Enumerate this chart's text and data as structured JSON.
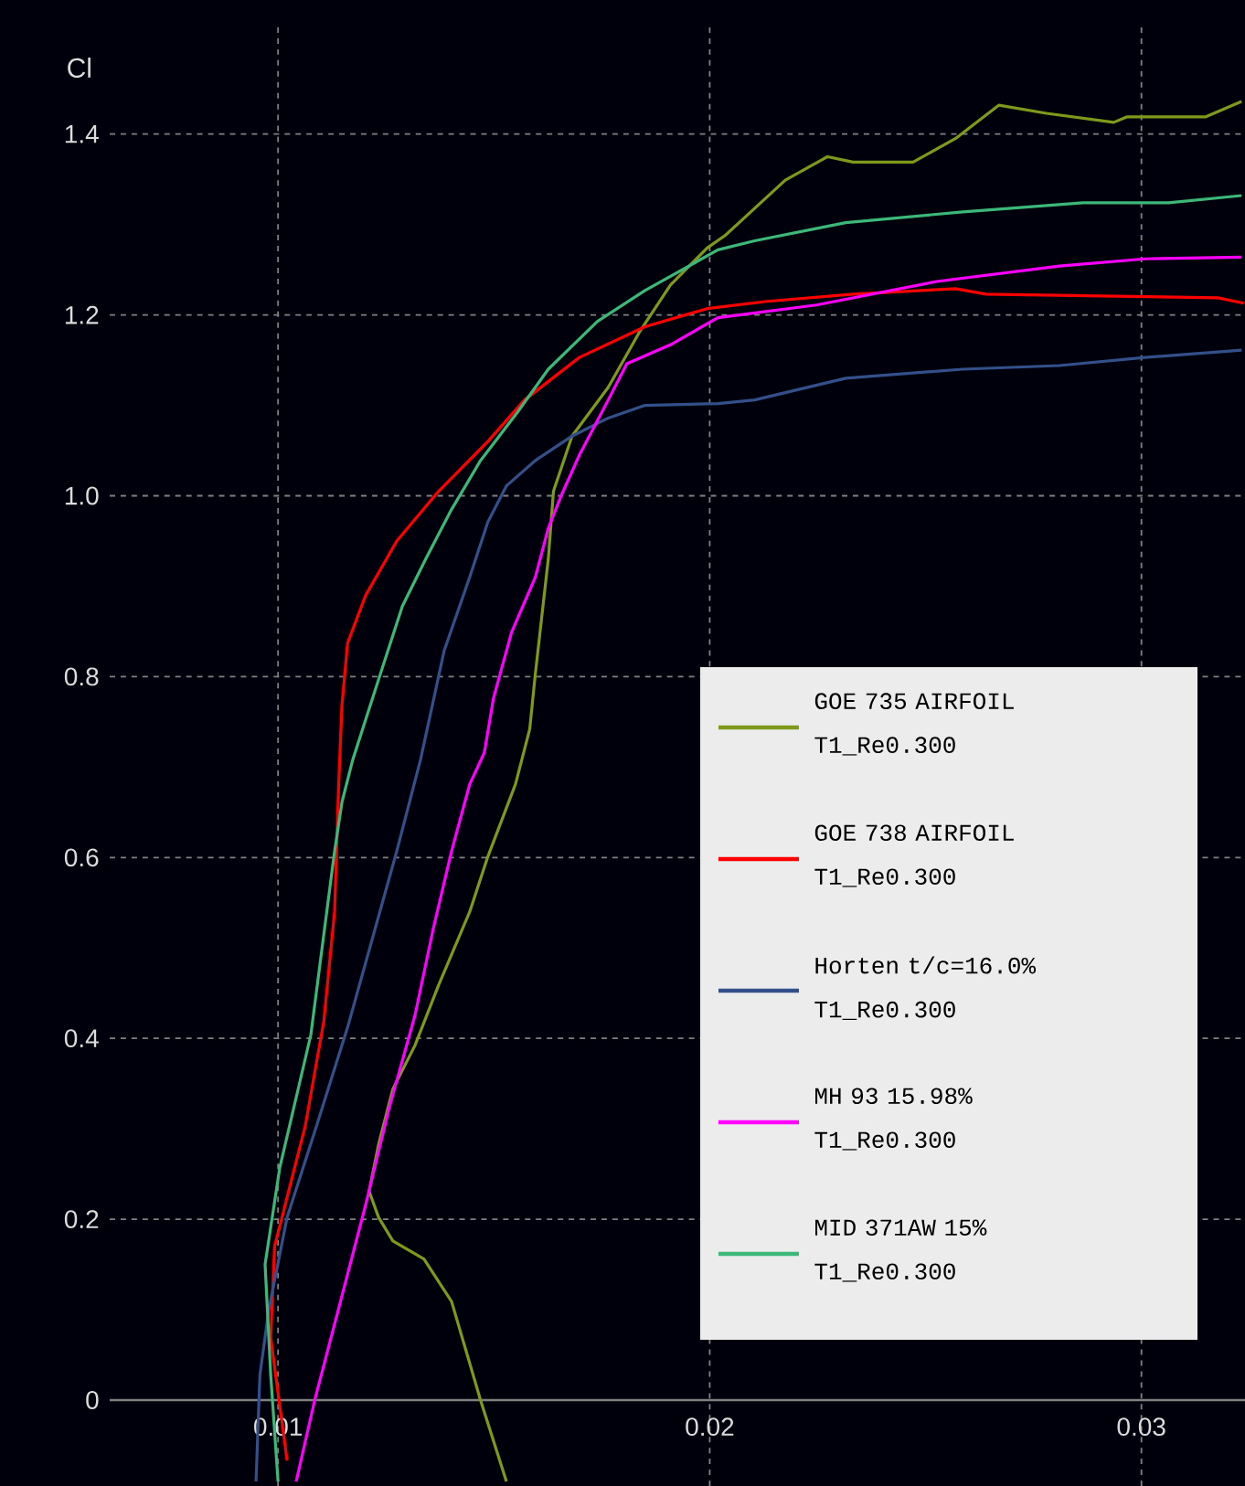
{
  "chart_data": {
    "type": "line",
    "ylabel": "Cl",
    "xlim": [
      0.0061,
      0.0324
    ],
    "ylim": [
      -0.095,
      1.52
    ],
    "xticks": [
      0.01,
      0.02,
      0.03
    ],
    "yticks": [
      0,
      0.2,
      0.4,
      0.6,
      0.8,
      {
        "value": 1,
        "label": "1.0"
      },
      1.2,
      1.4
    ],
    "grid": true,
    "legend": "bottom right",
    "series": [
      {
        "name": "GOE 735 AIRFOIL T1_Re0.300",
        "color": "#7f9a1a",
        "x": [
          0.01529,
          0.01469,
          0.01402,
          0.01338,
          0.01266,
          0.01233,
          0.01211,
          0.01233,
          0.01266,
          0.01317,
          0.01372,
          0.01444,
          0.01486,
          0.0155,
          0.01583,
          0.01596,
          0.01626,
          0.01638,
          0.01681,
          0.01765,
          0.01837,
          0.01909,
          0.01994,
          0.02036,
          0.02175,
          0.02273,
          0.02332,
          0.02471,
          0.02569,
          0.0267,
          0.0278,
          0.02936,
          0.02966,
          0.03148,
          0.03232
        ],
        "values": [
          -0.09,
          0,
          0.109,
          0.156,
          0.176,
          0.202,
          0.231,
          0.283,
          0.344,
          0.392,
          0.459,
          0.54,
          0.601,
          0.681,
          0.742,
          0.803,
          0.93,
          1.005,
          1.066,
          1.12,
          1.181,
          1.233,
          1.274,
          1.288,
          1.349,
          1.375,
          1.369,
          1.369,
          1.395,
          1.432,
          1.423,
          1.413,
          1.419,
          1.419,
          1.436
        ]
      },
      {
        "name": "GOE 738 AIRFOIL T1_Re0.300",
        "color": "#ff0000",
        "x": [
          0.01021,
          0.00983,
          0.00992,
          0.01063,
          0.01106,
          0.01131,
          0.0114,
          0.01148,
          0.01161,
          0.01203,
          0.01275,
          0.01372,
          0.01486,
          0.01571,
          0.01698,
          0.0185,
          0.01994,
          0.02133,
          0.02332,
          0.02569,
          0.0264,
          0.02907,
          0.03177,
          0.03237
        ],
        "values": [
          -0.067,
          0.069,
          0.17,
          0.303,
          0.419,
          0.54,
          0.675,
          0.768,
          0.837,
          0.89,
          0.95,
          1.005,
          1.06,
          1.106,
          1.153,
          1.187,
          1.207,
          1.215,
          1.223,
          1.229,
          1.223,
          1.221,
          1.219,
          1.213
        ]
      },
      {
        "name": "Horten t/c=16.0% T1_Re0.300",
        "color": "#34508a",
        "x": [
          0.00949,
          0.00958,
          0.00979,
          0.01021,
          0.01089,
          0.01161,
          0.01216,
          0.01275,
          0.0133,
          0.01385,
          0.01444,
          0.01486,
          0.01529,
          0.01596,
          0.01681,
          0.01765,
          0.0185,
          0.02019,
          0.02104,
          0.02315,
          0.02586,
          0.0281,
          0.03008,
          0.03232
        ],
        "values": [
          -0.09,
          0.028,
          0.101,
          0.202,
          0.303,
          0.412,
          0.506,
          0.607,
          0.708,
          0.829,
          0.91,
          0.971,
          1.011,
          1.039,
          1.066,
          1.086,
          1.1,
          1.102,
          1.106,
          1.13,
          1.14,
          1.144,
          1.153,
          1.161
        ]
      },
      {
        "name": "MH 93  15.98% T1_Re0.300",
        "color": "#ff00ff",
        "x": [
          0.01042,
          0.01085,
          0.01148,
          0.01203,
          0.01258,
          0.01317,
          0.01359,
          0.01402,
          0.01444,
          0.01478,
          0.01499,
          0.01541,
          0.01596,
          0.01626,
          0.01655,
          0.01698,
          0.01765,
          0.01808,
          0.01909,
          0.02019,
          0.02247,
          0.02526,
          0.0281,
          0.03008,
          0.03232
        ],
        "values": [
          -0.09,
          0,
          0.115,
          0.216,
          0.324,
          0.425,
          0.52,
          0.607,
          0.681,
          0.716,
          0.776,
          0.849,
          0.91,
          0.964,
          0.999,
          1.045,
          1.106,
          1.146,
          1.167,
          1.197,
          1.211,
          1.237,
          1.254,
          1.262,
          1.264
        ]
      },
      {
        "name": "MID 371AW 15% T1_Re0.300",
        "color": "#3cb878",
        "x": [
          0.01,
          0.00983,
          0.0097,
          0.01004,
          0.01076,
          0.01131,
          0.01148,
          0.01173,
          0.01233,
          0.01288,
          0.01342,
          0.01402,
          0.01469,
          0.01554,
          0.01626,
          0.0174,
          0.0185,
          0.02019,
          0.02104,
          0.02315,
          0.02586,
          0.02865,
          0.03063,
          0.03232
        ],
        "values": [
          -0.09,
          0.028,
          0.15,
          0.257,
          0.404,
          0.607,
          0.661,
          0.708,
          0.797,
          0.878,
          0.93,
          0.985,
          1.039,
          1.092,
          1.14,
          1.193,
          1.227,
          1.272,
          1.282,
          1.302,
          1.314,
          1.324,
          1.324,
          1.332
        ]
      }
    ]
  }
}
